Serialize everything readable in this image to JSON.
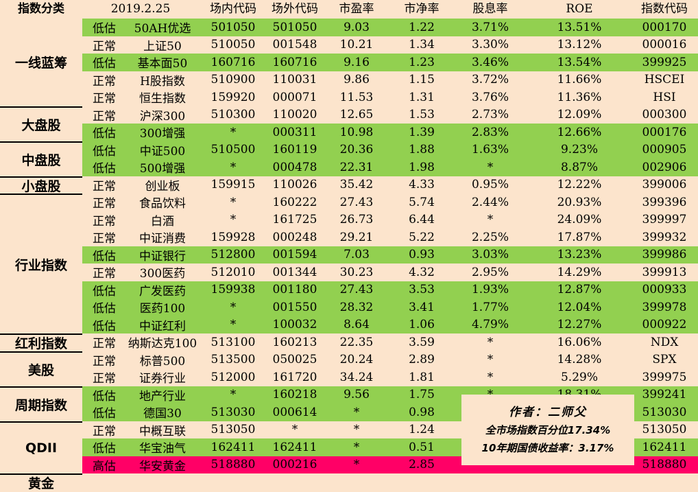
{
  "header": [
    "指数分类",
    "2019.2.25",
    "场内代码",
    "场外代码",
    "市盈率",
    "市净率",
    "股息率",
    "ROE",
    "指数代码"
  ],
  "categories": [
    {
      "label": "一线蓝筹",
      "rows": 5
    },
    {
      "label": "大盘股",
      "rows": 2
    },
    {
      "label": "中盘股",
      "rows": 2
    },
    {
      "label": "小盘股",
      "rows": 1
    },
    {
      "label": "行业指数",
      "rows": 8
    },
    {
      "label": "红利指数",
      "rows": 1
    },
    {
      "label": "美股",
      "rows": 2
    },
    {
      "label": "周期指数",
      "rows": 2
    },
    {
      "label": "QDII",
      "rows": 3
    },
    {
      "label": "黄金",
      "rows": 1
    }
  ],
  "rows": [
    {
      "status": "低估",
      "name": "50AH优选",
      "onCode": "501050",
      "offCode": "501050",
      "pe": "9.03",
      "pb": "1.22",
      "div": "3.71%",
      "roe": "13.51%",
      "idx": "000170"
    },
    {
      "status": "正常",
      "name": "上证50",
      "onCode": "510050",
      "offCode": "001548",
      "pe": "10.21",
      "pb": "1.34",
      "div": "3.30%",
      "roe": "13.12%",
      "idx": "000016"
    },
    {
      "status": "低估",
      "name": "基本面50",
      "onCode": "160716",
      "offCode": "160716",
      "pe": "9.16",
      "pb": "1.23",
      "div": "3.46%",
      "roe": "13.54%",
      "idx": "399925"
    },
    {
      "status": "正常",
      "name": "H股指数",
      "onCode": "510900",
      "offCode": "110031",
      "pe": "9.86",
      "pb": "1.15",
      "div": "3.72%",
      "roe": "11.66%",
      "idx": "HSCEI"
    },
    {
      "status": "正常",
      "name": "恒生指数",
      "onCode": "159920",
      "offCode": "000071",
      "pe": "11.53",
      "pb": "1.31",
      "div": "3.76%",
      "roe": "11.36%",
      "idx": "HSI"
    },
    {
      "status": "正常",
      "name": "沪深300",
      "onCode": "510300",
      "offCode": "110020",
      "pe": "12.65",
      "pb": "1.53",
      "div": "2.73%",
      "roe": "12.09%",
      "idx": "000300"
    },
    {
      "status": "低估",
      "name": "300增强",
      "onCode": "*",
      "offCode": "000311",
      "pe": "10.98",
      "pb": "1.39",
      "div": "2.83%",
      "roe": "12.66%",
      "idx": "000176"
    },
    {
      "status": "低估",
      "name": "中证500",
      "onCode": "510500",
      "offCode": "160119",
      "pe": "20.36",
      "pb": "1.88",
      "div": "1.63%",
      "roe": "9.23%",
      "idx": "000905"
    },
    {
      "status": "低估",
      "name": "500增强",
      "onCode": "*",
      "offCode": "000478",
      "pe": "22.31",
      "pb": "1.98",
      "div": "*",
      "roe": "8.87%",
      "idx": "002906"
    },
    {
      "status": "正常",
      "name": "创业板",
      "onCode": "159915",
      "offCode": "110026",
      "pe": "35.42",
      "pb": "4.33",
      "div": "0.95%",
      "roe": "12.22%",
      "idx": "399006"
    },
    {
      "status": "正常",
      "name": "食品饮料",
      "onCode": "*",
      "offCode": "160222",
      "pe": "27.43",
      "pb": "5.74",
      "div": "2.44%",
      "roe": "20.93%",
      "idx": "399396"
    },
    {
      "status": "正常",
      "name": "白酒",
      "onCode": "*",
      "offCode": "161725",
      "pe": "26.73",
      "pb": "6.44",
      "div": "*",
      "roe": "24.09%",
      "idx": "399997"
    },
    {
      "status": "正常",
      "name": "中证消费",
      "onCode": "159928",
      "offCode": "000248",
      "pe": "29.21",
      "pb": "5.22",
      "div": "2.25%",
      "roe": "17.87%",
      "idx": "399932"
    },
    {
      "status": "低估",
      "name": "中证银行",
      "onCode": "512800",
      "offCode": "001594",
      "pe": "7.03",
      "pb": "0.93",
      "div": "3.03%",
      "roe": "13.23%",
      "idx": "399986"
    },
    {
      "status": "正常",
      "name": "300医药",
      "onCode": "512010",
      "offCode": "001344",
      "pe": "30.23",
      "pb": "4.32",
      "div": "2.95%",
      "roe": "14.29%",
      "idx": "399913"
    },
    {
      "status": "低估",
      "name": "广发医药",
      "onCode": "159938",
      "offCode": "001180",
      "pe": "27.43",
      "pb": "3.53",
      "div": "1.93%",
      "roe": "12.87%",
      "idx": "000933"
    },
    {
      "status": "低估",
      "name": "医药100",
      "onCode": "*",
      "offCode": "001550",
      "pe": "28.32",
      "pb": "3.41",
      "div": "1.77%",
      "roe": "12.04%",
      "idx": "399978"
    },
    {
      "status": "低估",
      "name": "中证红利",
      "onCode": "*",
      "offCode": "100032",
      "pe": "8.64",
      "pb": "1.06",
      "div": "4.79%",
      "roe": "12.27%",
      "idx": "000922"
    },
    {
      "status": "正常",
      "name": "纳斯达克100",
      "onCode": "513100",
      "offCode": "160213",
      "pe": "22.35",
      "pb": "3.59",
      "div": "*",
      "roe": "16.06%",
      "idx": "NDX"
    },
    {
      "status": "正常",
      "name": "标普500",
      "onCode": "513500",
      "offCode": "050025",
      "pe": "20.24",
      "pb": "2.89",
      "div": "*",
      "roe": "14.28%",
      "idx": "SPX"
    },
    {
      "status": "正常",
      "name": "证券行业",
      "onCode": "512000",
      "offCode": "161720",
      "pe": "34.24",
      "pb": "1.81",
      "div": "*",
      "roe": "5.29%",
      "idx": "399975"
    },
    {
      "status": "低估",
      "name": "地产行业",
      "onCode": "*",
      "offCode": "160218",
      "pe": "9.56",
      "pb": "1.75",
      "div": "*",
      "roe": "18.31%",
      "idx": "399241"
    },
    {
      "status": "低估",
      "name": "德国30",
      "onCode": "513030",
      "offCode": "000614",
      "pe": "*",
      "pb": "0.98",
      "div": "",
      "roe": "",
      "idx": "513030"
    },
    {
      "status": "正常",
      "name": "中概互联",
      "onCode": "513050",
      "offCode": "*",
      "pe": "*",
      "pb": "1.24",
      "div": "",
      "roe": "",
      "idx": "513050"
    },
    {
      "status": "低估",
      "name": "华宝油气",
      "onCode": "162411",
      "offCode": "162411",
      "pe": "*",
      "pb": "0.51",
      "div": "",
      "roe": "",
      "idx": "162411"
    },
    {
      "status": "高估",
      "name": "华安黄金",
      "onCode": "518880",
      "offCode": "000216",
      "pe": "*",
      "pb": "2.85",
      "div": "",
      "roe": "",
      "idx": "518880"
    }
  ],
  "note": {
    "author": "作者：二师父",
    "percentile": "全市场指数百分位17.34%",
    "bond": "10年期国债收益率：3.17%"
  },
  "colors": {
    "low": "#92d050",
    "normal": "#fce4cc",
    "high": "#ff0066"
  }
}
